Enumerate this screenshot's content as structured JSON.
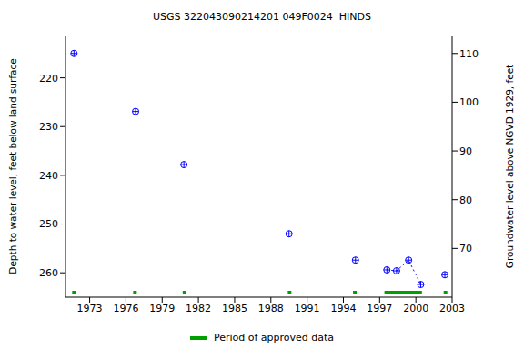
{
  "chart_data": {
    "type": "scatter",
    "title": "USGS 322043090214201 049F0024  HINDS",
    "y_label": "Depth to water level, feet below land surface",
    "y2_label": "Groundwater level above NGVD 1929, feet",
    "x": [
      1971.7,
      1976.8,
      1980.8,
      1989.5,
      1995.0,
      1997.6,
      1998.4,
      1999.4,
      2000.4,
      2002.4
    ],
    "values": [
      215,
      226.9,
      237.8,
      252,
      257.4,
      259.4,
      259.6,
      257.4,
      262.4,
      260.4
    ],
    "color": "#0000ff",
    "marker": "circle_plus",
    "line_style": "dotted",
    "xlim": [
      1971,
      2003
    ],
    "xticks": [
      1973,
      1976,
      1979,
      1982,
      1985,
      1988,
      1991,
      1994,
      1997,
      2000,
      2003
    ],
    "ylim": [
      265,
      211.5
    ],
    "yticks": [
      220,
      230,
      240,
      250,
      260
    ],
    "y2lim": [
      60,
      113.5
    ],
    "y2ticks": [
      70,
      80,
      90,
      100,
      110
    ],
    "approved_periods": {
      "name": "Period of approved data",
      "color": "#00a000",
      "ranges": [
        [
          1971.55,
          1971.85
        ],
        [
          1976.6,
          1976.9
        ],
        [
          1980.7,
          1981.0
        ],
        [
          1989.4,
          1989.7
        ],
        [
          1994.8,
          1995.1
        ],
        [
          1997.4,
          2000.5
        ],
        [
          2002.3,
          2002.6
        ]
      ]
    }
  }
}
